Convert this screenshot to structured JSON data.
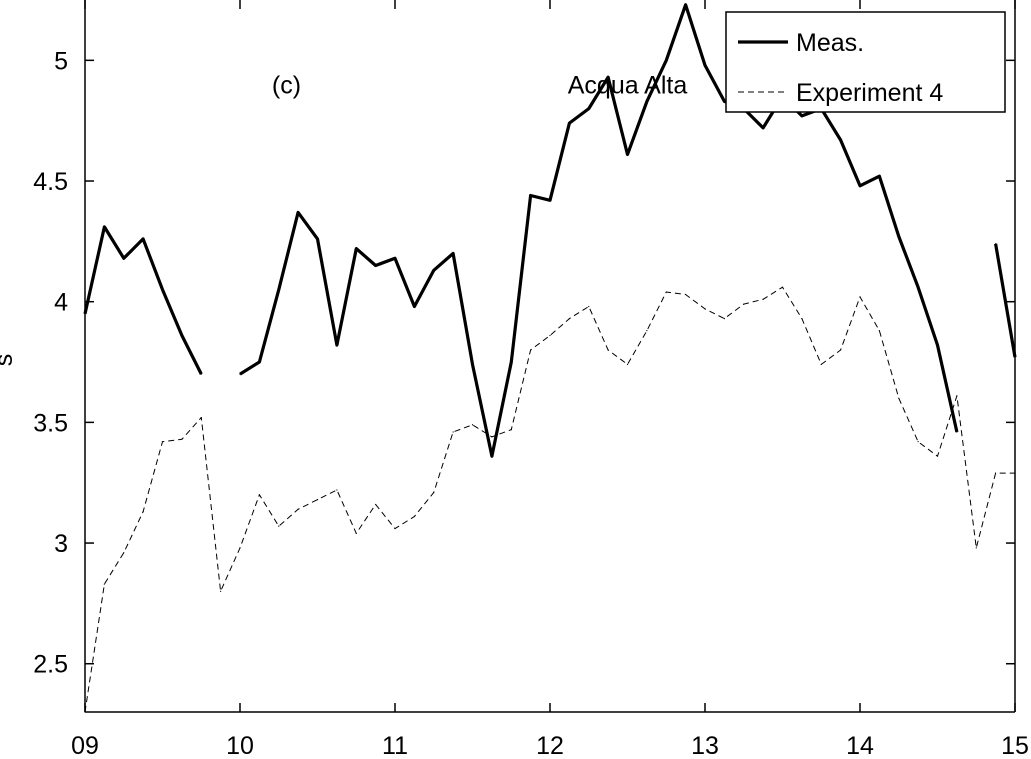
{
  "chart_data": {
    "type": "line",
    "title": "",
    "xlabel": "",
    "ylabel": "s",
    "xlim": [
      9,
      15
    ],
    "ylim": [
      2.3,
      5.25
    ],
    "grid": false,
    "legend_position": "top-right",
    "x_ticks": [
      9,
      10,
      11,
      12,
      13,
      14,
      15
    ],
    "x_tick_labels": [
      "09",
      "10",
      "11",
      "12",
      "13",
      "14",
      "15"
    ],
    "y_ticks": [
      2.5,
      3,
      3.5,
      4,
      4.5,
      5
    ],
    "y_tick_labels": [
      "2.5",
      "3",
      "3.5",
      "4",
      "4.5",
      "5"
    ],
    "annotations": [
      {
        "text": "(c)",
        "x": 10.3,
        "y": 4.9
      },
      {
        "text": "Acqua Alta",
        "x": 12.5,
        "y": 4.9
      }
    ],
    "series": [
      {
        "name": "Meas.",
        "style": "solid",
        "color": "#000000",
        "points": [
          [
            9.0,
            3.95
          ],
          [
            9.125,
            4.31
          ],
          [
            9.25,
            4.18
          ],
          [
            9.375,
            4.26
          ],
          [
            9.5,
            4.05
          ],
          [
            9.625,
            3.86
          ],
          [
            9.75,
            3.7
          ],
          null,
          [
            10.0,
            3.7
          ],
          [
            10.125,
            3.75
          ],
          [
            10.25,
            4.05
          ],
          [
            10.375,
            4.37
          ],
          [
            10.5,
            4.26
          ],
          [
            10.625,
            3.82
          ],
          [
            10.75,
            4.22
          ],
          [
            10.875,
            4.15
          ],
          [
            11.0,
            4.18
          ],
          [
            11.125,
            3.98
          ],
          [
            11.25,
            4.13
          ],
          [
            11.375,
            4.2
          ],
          [
            11.5,
            3.74
          ],
          [
            11.625,
            3.36
          ],
          [
            11.75,
            3.75
          ],
          [
            11.875,
            4.44
          ],
          [
            12.0,
            4.42
          ],
          [
            12.125,
            4.74
          ],
          [
            12.25,
            4.8
          ],
          [
            12.375,
            4.93
          ],
          [
            12.5,
            4.61
          ],
          [
            12.625,
            4.83
          ],
          [
            12.75,
            5.0
          ],
          [
            12.875,
            5.23
          ],
          [
            13.0,
            4.98
          ],
          [
            13.125,
            4.83
          ],
          [
            13.25,
            4.8
          ],
          [
            13.375,
            4.72
          ],
          [
            13.5,
            4.85
          ],
          [
            13.625,
            4.77
          ],
          [
            13.75,
            4.8
          ],
          [
            13.875,
            4.67
          ],
          [
            14.0,
            4.48
          ],
          [
            14.125,
            4.52
          ],
          [
            14.25,
            4.27
          ],
          [
            14.375,
            4.06
          ],
          [
            14.5,
            3.82
          ],
          [
            14.625,
            3.46
          ],
          null,
          [
            14.875,
            4.24
          ],
          [
            15.0,
            3.77
          ]
        ]
      },
      {
        "name": "Experiment 4",
        "style": "dashed",
        "color": "#000000",
        "points": [
          [
            9.0,
            2.3
          ],
          [
            9.125,
            2.83
          ],
          [
            9.25,
            2.96
          ],
          [
            9.375,
            3.13
          ],
          [
            9.5,
            3.42
          ],
          [
            9.625,
            3.43
          ],
          [
            9.75,
            3.52
          ],
          [
            9.875,
            2.8
          ],
          [
            10.0,
            2.98
          ],
          [
            10.125,
            3.2
          ],
          [
            10.25,
            3.07
          ],
          [
            10.375,
            3.14
          ],
          [
            10.5,
            3.18
          ],
          [
            10.625,
            3.22
          ],
          [
            10.75,
            3.04
          ],
          [
            10.875,
            3.16
          ],
          [
            11.0,
            3.06
          ],
          [
            11.125,
            3.11
          ],
          [
            11.25,
            3.21
          ],
          [
            11.375,
            3.46
          ],
          [
            11.5,
            3.49
          ],
          [
            11.625,
            3.44
          ],
          [
            11.75,
            3.47
          ],
          [
            11.875,
            3.8
          ],
          [
            12.0,
            3.86
          ],
          [
            12.125,
            3.93
          ],
          [
            12.25,
            3.98
          ],
          [
            12.375,
            3.8
          ],
          [
            12.5,
            3.74
          ],
          [
            12.625,
            3.88
          ],
          [
            12.75,
            4.04
          ],
          [
            12.875,
            4.03
          ],
          [
            13.0,
            3.97
          ],
          [
            13.125,
            3.93
          ],
          [
            13.25,
            3.99
          ],
          [
            13.375,
            4.01
          ],
          [
            13.5,
            4.06
          ],
          [
            13.625,
            3.93
          ],
          [
            13.75,
            3.74
          ],
          [
            13.875,
            3.8
          ],
          [
            14.0,
            4.02
          ],
          [
            14.125,
            3.88
          ],
          [
            14.25,
            3.6
          ],
          [
            14.375,
            3.42
          ],
          [
            14.5,
            3.36
          ],
          [
            14.625,
            3.61
          ],
          [
            14.75,
            2.98
          ],
          [
            14.875,
            3.29
          ],
          [
            15.0,
            3.29
          ]
        ]
      }
    ]
  }
}
